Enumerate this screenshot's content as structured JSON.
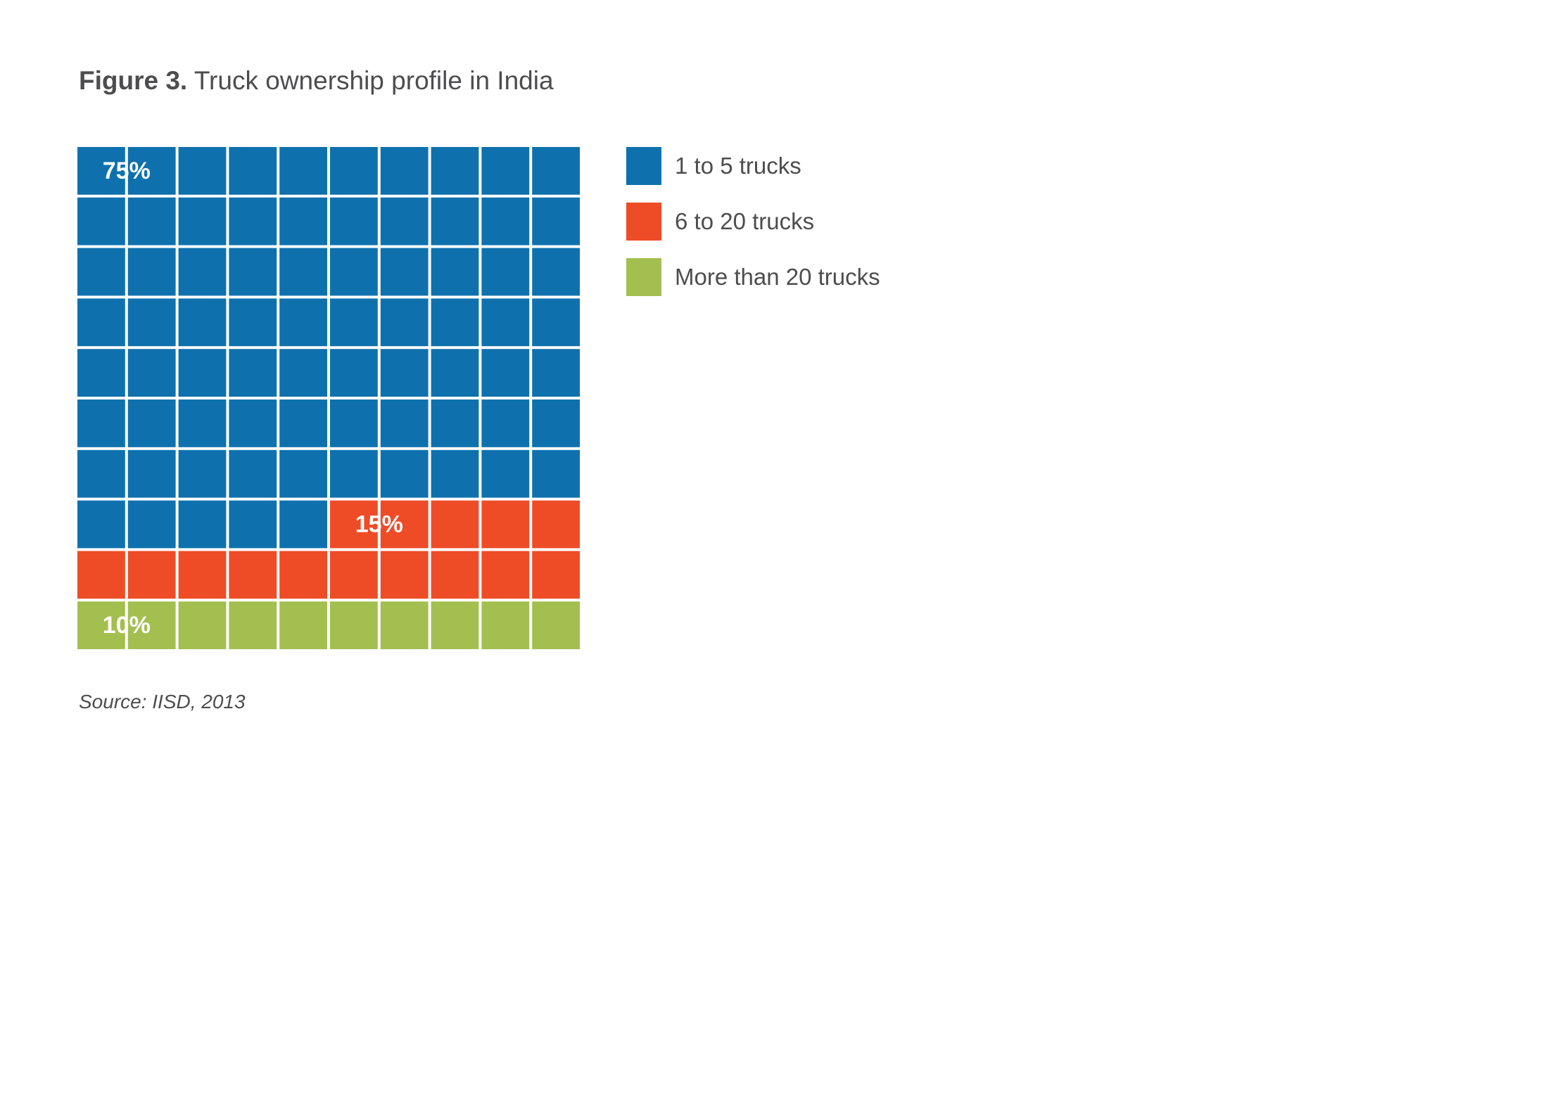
{
  "figure": {
    "label": "Figure 3.",
    "title": "Truck ownership profile in India",
    "source": "Source: IISD, 2013"
  },
  "chart_data": {
    "type": "waffle",
    "grid": {
      "rows": 10,
      "columns": 10,
      "total_cells": 100
    },
    "series": [
      {
        "name": "1 to 5 trucks",
        "value": 75,
        "label": "75%",
        "color": "#0e71ad"
      },
      {
        "name": "6 to 20 trucks",
        "value": 15,
        "label": "15%",
        "color": "#ee4c27"
      },
      {
        "name": "More than 20 trucks",
        "value": 10,
        "label": "10%",
        "color": "#a3bf50"
      }
    ],
    "legend_position": "right",
    "fill_order": "left-to-right, top-to-bottom"
  }
}
